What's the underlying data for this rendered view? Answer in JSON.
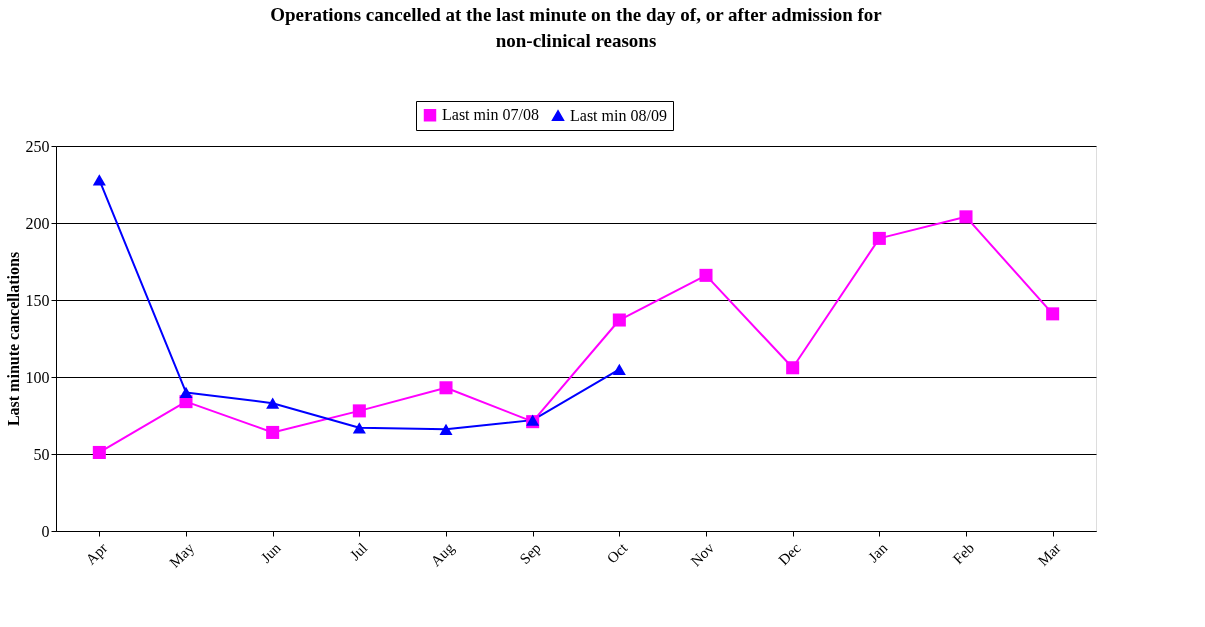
{
  "chart_data": {
    "type": "line",
    "title": "Operations cancelled at the last minute on the day of, or after admission for non-clinical reasons",
    "ylabel": "Last minute cancellations",
    "categories": [
      "Apr",
      "May",
      "Jun",
      "Jul",
      "Aug",
      "Sep",
      "Oct",
      "Nov",
      "Dec",
      "Jan",
      "Feb",
      "Mar"
    ],
    "series": [
      {
        "name": "Last min 07/08",
        "color": "#ff00ff",
        "marker": "square",
        "values": [
          51,
          84,
          64,
          78,
          93,
          71,
          137,
          166,
          106,
          190,
          204,
          141
        ]
      },
      {
        "name": "Last min 08/09",
        "color": "#0000ff",
        "marker": "triangle",
        "values": [
          228,
          90,
          83,
          67,
          66,
          72,
          105,
          null,
          null,
          null,
          null,
          null
        ]
      }
    ],
    "ylim": [
      0,
      250
    ],
    "yticks": [
      0,
      50,
      100,
      150,
      200,
      250
    ],
    "grid": "y",
    "legend": "top",
    "line_style": "solid"
  }
}
